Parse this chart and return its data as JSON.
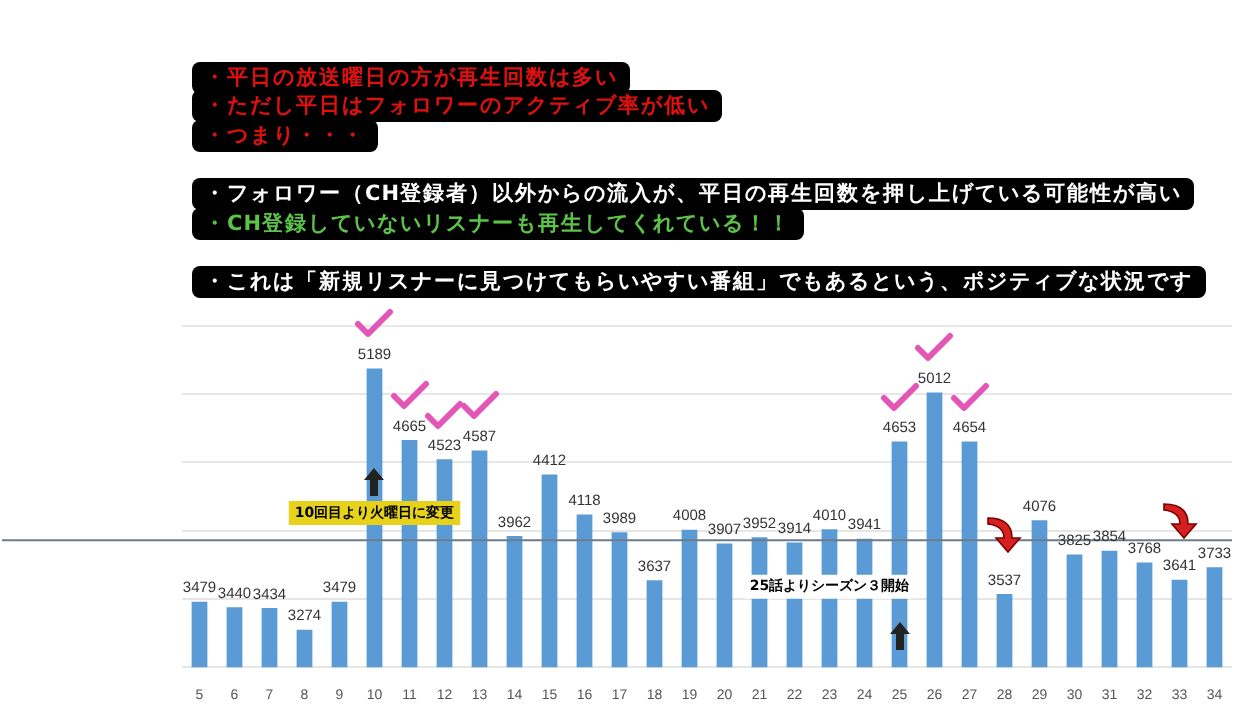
{
  "chart_data": {
    "type": "bar",
    "categories": [
      "5",
      "6",
      "7",
      "8",
      "9",
      "10",
      "11",
      "12",
      "13",
      "14",
      "15",
      "16",
      "17",
      "18",
      "19",
      "20",
      "21",
      "22",
      "23",
      "24",
      "25",
      "26",
      "27",
      "28",
      "29",
      "30",
      "31",
      "32",
      "33",
      "34"
    ],
    "values": [
      3479,
      3440,
      3434,
      3274,
      3479,
      5189,
      4665,
      4523,
      4587,
      3962,
      4412,
      4118,
      3989,
      3637,
      4008,
      3907,
      3952,
      3914,
      4010,
      3941,
      4653,
      5012,
      4654,
      3537,
      4076,
      3825,
      3854,
      3768,
      3641,
      3733
    ],
    "color": "#5b9bd5",
    "data_labels": true,
    "ylim": [
      3000,
      5500
    ],
    "yticks": [
      {
        "value": 3000,
        "label": null
      },
      {
        "value": 3500,
        "label": null
      },
      {
        "value": 4000,
        "label": null
      },
      {
        "value": 4500,
        "label": null
      },
      {
        "value": 5000,
        "label": null
      },
      {
        "value": 5500,
        "label": null
      }
    ],
    "tick_labels": "x",
    "grid": "y",
    "legend": false,
    "ref_lines": [
      {
        "axis": "y",
        "value": 3930,
        "color": "#6b7b8c"
      }
    ],
    "annotations": [
      "・平日の放送曜日の方が再生回数は多い",
      "・ただし平日はフォロワーのアクティブ率が低い",
      "・つまり・・・",
      "・フォロワー（CH登録者）以外からの流入が、平日の再生回数を押し上げている可能性が高い",
      "・CH登録していないリスナーも再生してくれている！！",
      "・これは「新規リスナーに見つけてもらいやすい番組」でもあるという、ポジティブな状況です",
      {
        "text": "10回目より火曜日に変更",
        "x": "10",
        "y": 4130
      },
      {
        "text": "25話よりシーズン３開始",
        "x": "23",
        "y": 3590
      }
    ]
  }
}
